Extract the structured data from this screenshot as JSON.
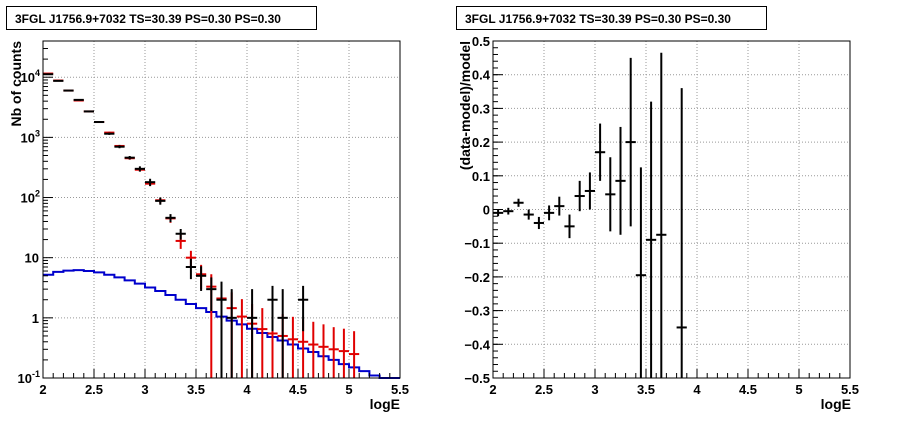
{
  "chart_data": [
    {
      "type": "histogram",
      "title": "3FGL J1756.9+7032 TS=30.39 PS=0.30 PS=0.30",
      "xlabel": "logE",
      "ylabel": "Nb of counts",
      "xlim": [
        2,
        5.5
      ],
      "ylim": [
        0.1,
        40000
      ],
      "yscale": "log",
      "grid": true,
      "x_ticks": [
        "2",
        "2.5",
        "3",
        "3.5",
        "4",
        "4.5",
        "5",
        "5.5"
      ],
      "y_ticks": [
        "10^-1",
        "1",
        "10",
        "10^2",
        "10^3",
        "10^4"
      ],
      "bin_edges": [
        2.0,
        2.1,
        2.2,
        2.3,
        2.4,
        2.5,
        2.6,
        2.7,
        2.8,
        2.9,
        3.0,
        3.1,
        3.2,
        3.3,
        3.4,
        3.5,
        3.6,
        3.7,
        3.8,
        3.9,
        4.0,
        4.1,
        4.2,
        4.3,
        4.4,
        4.5,
        4.6,
        4.7,
        4.8,
        4.9,
        5.0,
        5.1,
        5.2,
        5.3,
        5.4,
        5.5
      ],
      "series": [
        {
          "color": "#000000",
          "style": "points",
          "x": [
            2.05,
            2.15,
            2.25,
            2.35,
            2.45,
            2.55,
            2.65,
            2.75,
            2.85,
            2.95,
            3.05,
            3.15,
            3.25,
            3.35,
            3.45,
            3.55,
            3.65,
            3.75,
            3.85,
            4.05,
            4.25,
            4.35,
            4.55
          ],
          "y": [
            11200,
            8700,
            6000,
            4200,
            2700,
            1800,
            1150,
            700,
            460,
            300,
            180,
            88,
            46,
            25,
            7,
            5,
            3,
            2,
            1,
            1,
            2,
            1,
            2
          ],
          "err_low": [
            200,
            150,
            120,
            100,
            80,
            60,
            50,
            40,
            30,
            30,
            25,
            12,
            7,
            5,
            2.6,
            2.2,
            1.7,
            2,
            1,
            1,
            1.4,
            1,
            1.4
          ],
          "err_high": [
            200,
            150,
            120,
            100,
            80,
            60,
            50,
            40,
            30,
            30,
            25,
            12,
            7,
            5,
            2.6,
            2.2,
            1.7,
            2,
            2,
            2,
            1.4,
            2,
            1.4
          ]
        },
        {
          "color": "#e00000",
          "style": "points",
          "x": [
            2.05,
            2.15,
            2.25,
            2.35,
            2.45,
            2.55,
            2.65,
            2.75,
            2.85,
            2.95,
            3.05,
            3.15,
            3.25,
            3.35,
            3.45,
            3.55,
            3.65,
            3.75,
            3.85,
            3.95,
            4.05,
            4.15,
            4.25,
            4.35,
            4.45,
            4.55,
            4.65,
            4.75,
            4.85,
            4.95,
            5.05
          ],
          "y": [
            11500,
            8800,
            6000,
            4100,
            2700,
            1800,
            1200,
            720,
            450,
            290,
            170,
            90,
            45,
            19,
            10,
            5.3,
            3.3,
            2.1,
            1.45,
            1.05,
            0.8,
            0.65,
            0.55,
            0.5,
            0.44,
            0.4,
            0.36,
            0.33,
            0.3,
            0.28,
            0.25
          ],
          "err_low": [
            150,
            120,
            100,
            80,
            60,
            50,
            40,
            30,
            25,
            20,
            15,
            10,
            7,
            5,
            3,
            2.3,
            3.2,
            2,
            1.35,
            0.95,
            0.7,
            0.55,
            0.45,
            0.4,
            0.34,
            0.3,
            0.26,
            0.23,
            0.2,
            0.18,
            0.15
          ],
          "err_high": [
            150,
            120,
            100,
            80,
            60,
            50,
            40,
            30,
            25,
            20,
            15,
            10,
            7,
            5,
            3,
            2.3,
            2,
            1.5,
            1.2,
            1,
            0.9,
            0.8,
            0.7,
            0.65,
            0.6,
            0.55,
            0.5,
            0.45,
            0.4,
            0.38,
            0.35
          ]
        },
        {
          "color": "#0000cc",
          "style": "step",
          "values": [
            5.2,
            5.8,
            6.1,
            6.2,
            6.0,
            5.7,
            5.2,
            4.7,
            4.2,
            3.7,
            3.2,
            2.8,
            2.4,
            2.0,
            1.7,
            1.45,
            1.25,
            1.05,
            0.9,
            0.78,
            0.66,
            0.56,
            0.48,
            0.42,
            0.36,
            0.31,
            0.27,
            0.23,
            0.2,
            0.17,
            0.15,
            0.13,
            0.11,
            0.1,
            0.1
          ]
        }
      ]
    },
    {
      "type": "scatter",
      "title": "3FGL J1756.9+7032 TS=30.39 PS=0.30 PS=0.30",
      "xlabel": "logE",
      "ylabel": "(data-model)/model",
      "xlim": [
        2,
        5.5
      ],
      "ylim": [
        -0.5,
        0.5
      ],
      "grid": true,
      "x_ticks": [
        "2",
        "2.5",
        "3",
        "3.5",
        "4",
        "4.5",
        "5",
        "5.5"
      ],
      "y_ticks": [
        "-0.5",
        "-0.4",
        "-0.3",
        "-0.2",
        "-0.1",
        "0",
        "0.1",
        "0.2",
        "0.3",
        "0.4",
        "0.5"
      ],
      "series": [
        {
          "color": "#000000",
          "x": [
            2.05,
            2.15,
            2.25,
            2.35,
            2.45,
            2.55,
            2.65,
            2.75,
            2.85,
            2.95,
            3.05,
            3.15,
            3.25,
            3.35,
            3.45,
            3.55,
            3.65,
            3.85
          ],
          "y": [
            -0.01,
            -0.005,
            0.02,
            -0.015,
            -0.04,
            -0.01,
            0.01,
            -0.05,
            0.04,
            0.055,
            0.17,
            0.045,
            0.085,
            0.2,
            -0.195,
            -0.09,
            -0.075,
            -0.35
          ],
          "err": [
            0.01,
            0.01,
            0.012,
            0.015,
            0.018,
            0.022,
            0.028,
            0.035,
            0.045,
            0.055,
            0.085,
            0.11,
            0.16,
            0.25,
            0.32,
            0.41,
            0.54,
            0.71
          ]
        }
      ]
    }
  ]
}
